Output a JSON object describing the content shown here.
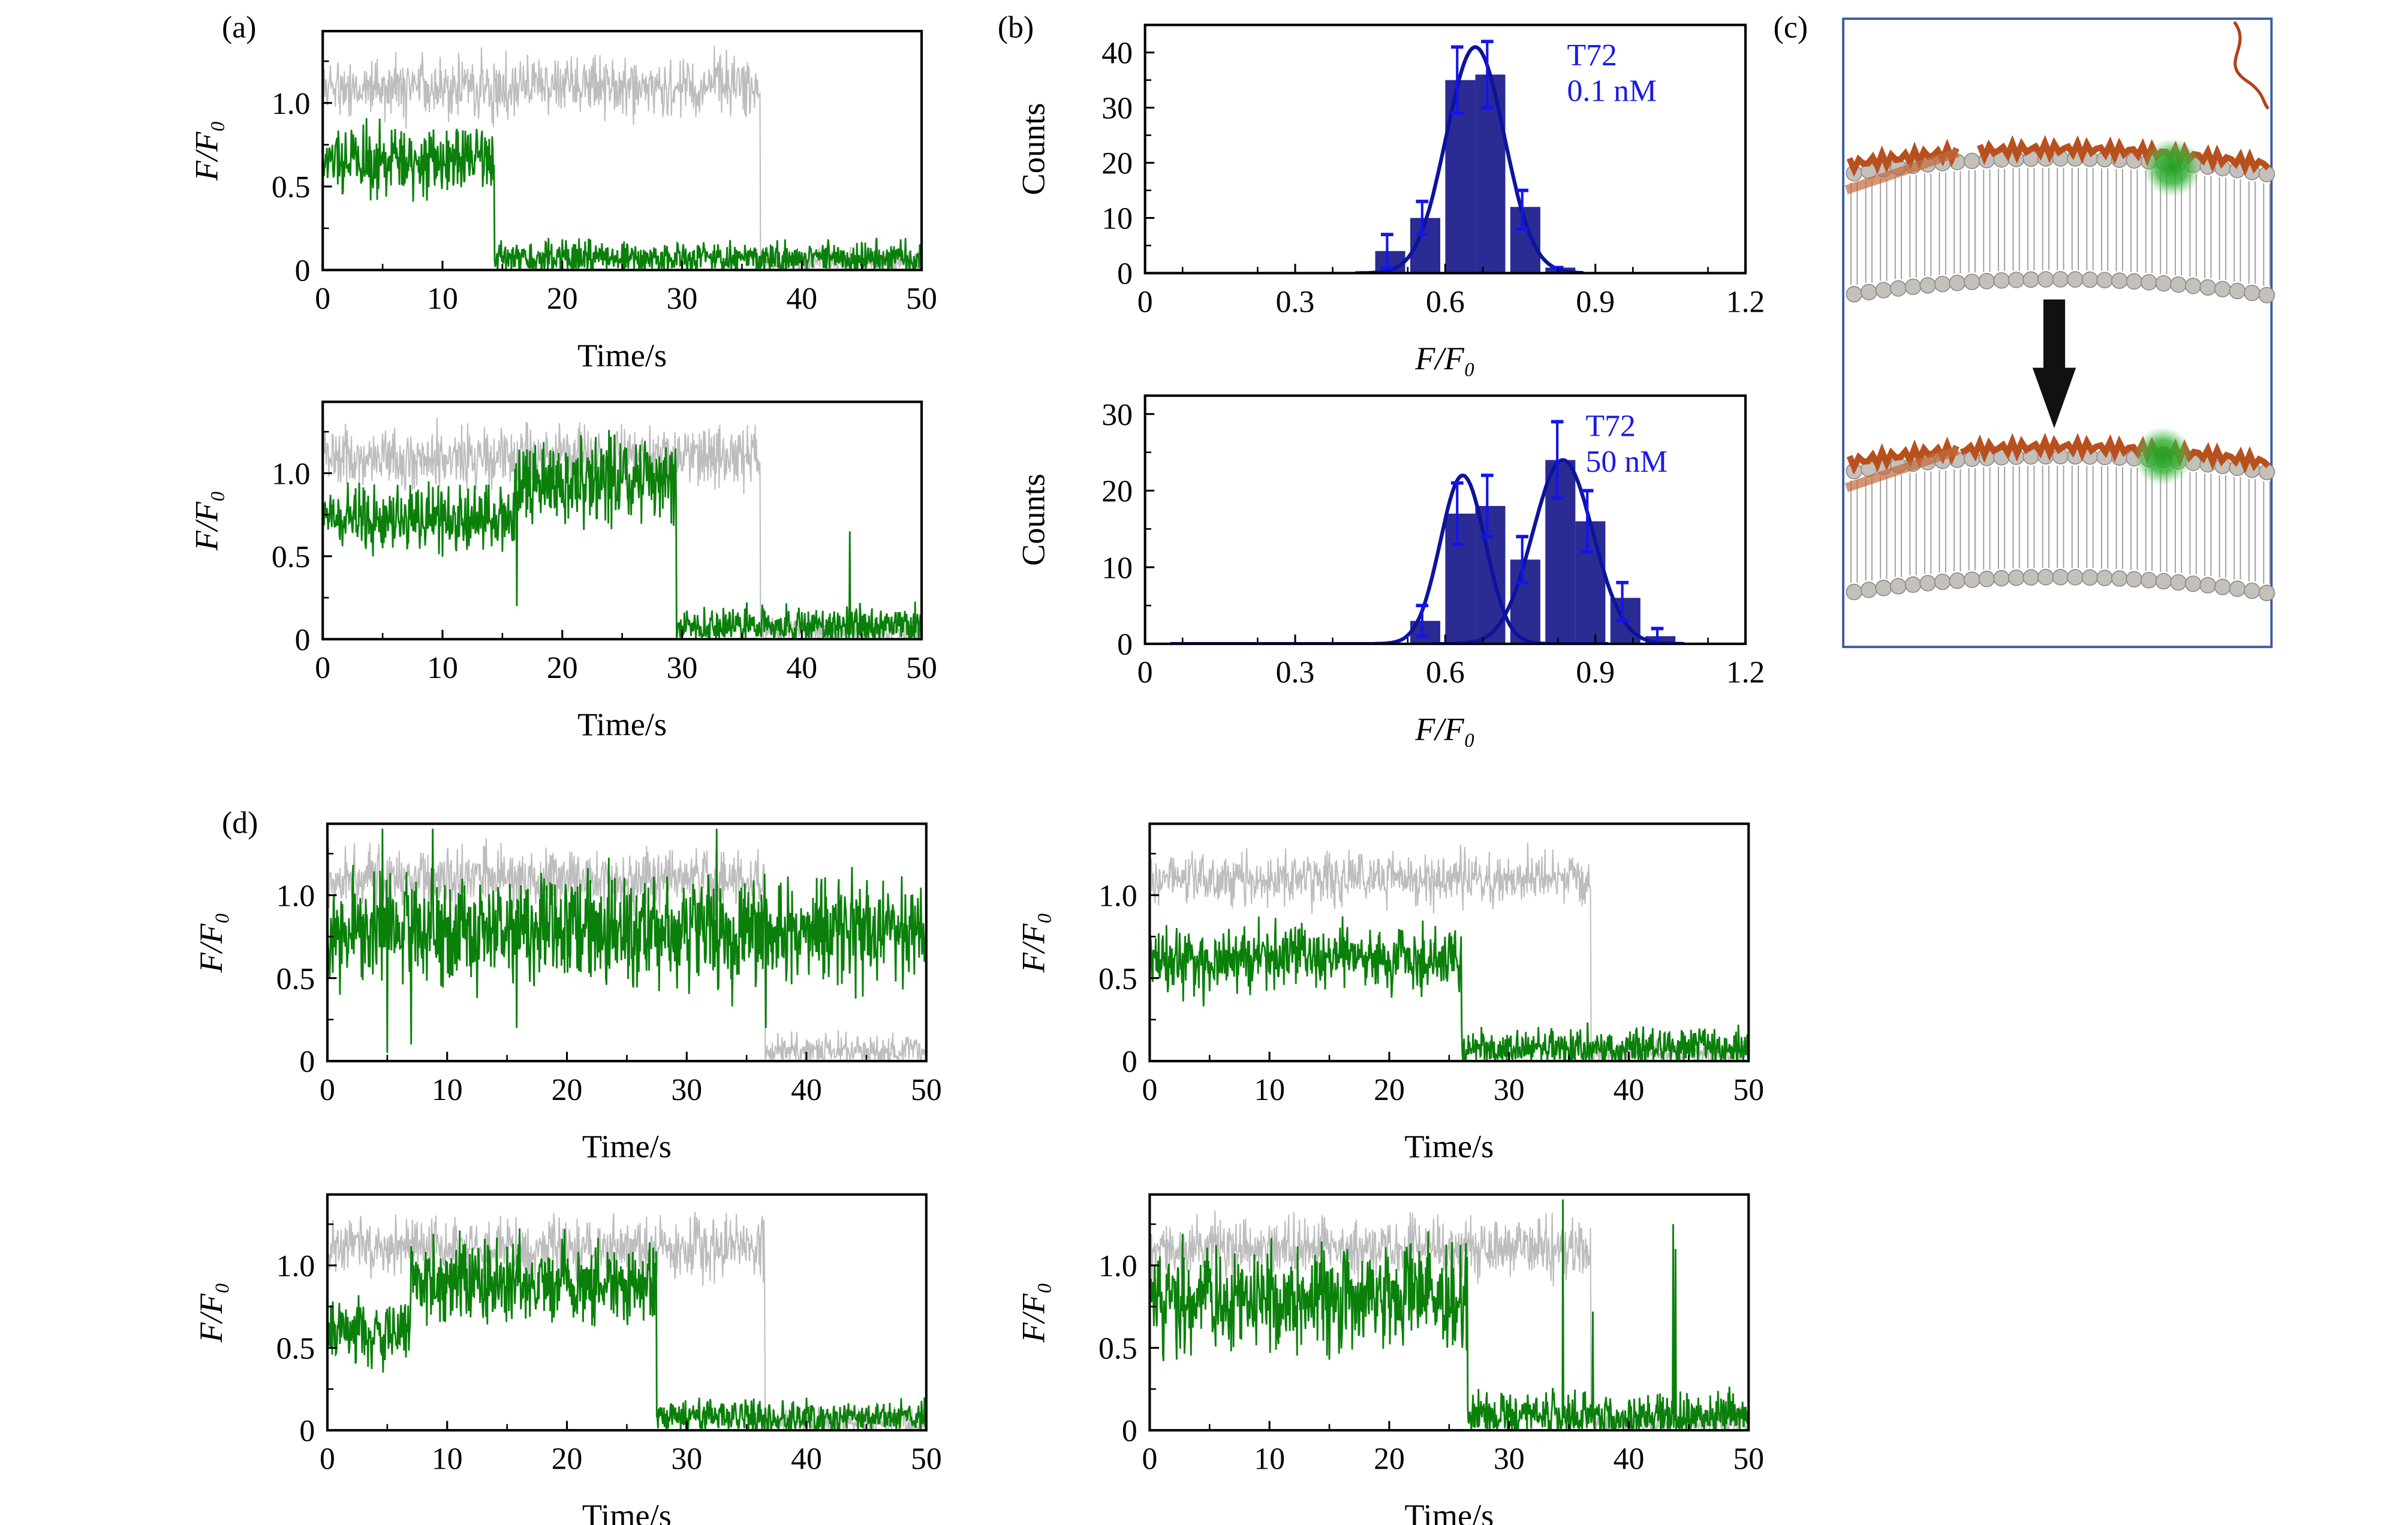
{
  "panels": {
    "a": "(a)",
    "b": "(b)",
    "c": "(c)",
    "d": "(d)"
  },
  "colors": {
    "green": "#0a800a",
    "gray": "#bdbdbd",
    "bar": "#2b2b94",
    "fit": "#0c149e",
    "error": "#1414f0",
    "annotation": "#1a1ae6"
  },
  "chart_data": [
    {
      "id": "a1",
      "type": "line",
      "xlabel": "Time/s",
      "ylabel": "F/F₀",
      "xlim": [
        0,
        50
      ],
      "ylim": [
        0,
        1.43
      ],
      "xticks": [
        0,
        10,
        20,
        30,
        40,
        50
      ],
      "yticks": [
        0,
        0.5,
        1.0
      ],
      "ytick_labels": [
        "0",
        "0.5",
        "1.0"
      ],
      "series": [
        {
          "color": "#bdbdbd",
          "segments": [
            {
              "from": 0,
              "to": 36.5,
              "mean": 1.1,
              "sd": 0.09
            },
            {
              "from": 36.5,
              "to": 50,
              "mean": 0.05,
              "sd": 0.04
            }
          ]
        },
        {
          "color": "#0a800a",
          "segments": [
            {
              "from": 0,
              "to": 14.3,
              "mean": 0.65,
              "sd": 0.1
            },
            {
              "from": 14.3,
              "to": 50,
              "mean": 0.07,
              "sd": 0.05
            }
          ]
        }
      ]
    },
    {
      "id": "a2",
      "type": "line",
      "xlabel": "Time/s",
      "ylabel": "F/F₀",
      "xlim": [
        0,
        50
      ],
      "ylim": [
        0,
        1.43
      ],
      "xticks": [
        0,
        10,
        20,
        30,
        40,
        50
      ],
      "yticks": [
        0,
        0.5,
        1.0
      ],
      "ytick_labels": [
        "0",
        "0.5",
        "1.0"
      ],
      "series": [
        {
          "color": "#bdbdbd",
          "segments": [
            {
              "from": 0,
              "to": 36.5,
              "mean": 1.1,
              "sd": 0.09
            },
            {
              "from": 36.5,
              "to": 50,
              "mean": 0.05,
              "sd": 0.04
            }
          ]
        },
        {
          "color": "#0a800a",
          "segments": [
            {
              "from": 0,
              "to": 16,
              "mean": 0.72,
              "sd": 0.1
            },
            {
              "from": 16,
              "to": 29.5,
              "mean": 0.95,
              "sd": 0.13
            },
            {
              "from": 29.5,
              "to": 50,
              "mean": 0.08,
              "sd": 0.06
            }
          ],
          "spikes": [
            {
              "t": 16.2,
              "value": 0.2
            },
            {
              "t": 44,
              "value": 0.65
            }
          ]
        }
      ]
    },
    {
      "id": "d1",
      "type": "line",
      "xlabel": "Time/s",
      "ylabel": "F/F₀",
      "xlim": [
        0,
        50
      ],
      "ylim": [
        0,
        1.43
      ],
      "xticks": [
        0,
        10,
        20,
        30,
        40,
        50
      ],
      "yticks": [
        0,
        0.5,
        1.0
      ],
      "ytick_labels": [
        "0",
        "0.5",
        "1.0"
      ],
      "series": [
        {
          "color": "#bdbdbd",
          "segments": [
            {
              "from": 0,
              "to": 36.5,
              "mean": 1.1,
              "sd": 0.09
            },
            {
              "from": 36.5,
              "to": 50,
              "mean": 0.06,
              "sd": 0.05
            }
          ]
        },
        {
          "color": "#0a800a",
          "segments": [
            {
              "from": 0,
              "to": 50,
              "mean": 0.78,
              "sd": 0.16
            }
          ],
          "spikes": [
            {
              "t": 5,
              "value": 0.05
            },
            {
              "t": 7,
              "value": 0.1
            },
            {
              "t": 4.6,
              "value": 1.4
            },
            {
              "t": 8.8,
              "value": 1.4
            },
            {
              "t": 15.8,
              "value": 0.2
            },
            {
              "t": 32.5,
              "value": 1.4
            },
            {
              "t": 36.6,
              "value": 0.2
            }
          ]
        }
      ]
    },
    {
      "id": "d2",
      "type": "line",
      "xlabel": "Time/s",
      "ylabel": "F/F₀",
      "xlim": [
        0,
        50
      ],
      "ylim": [
        0,
        1.43
      ],
      "xticks": [
        0,
        10,
        20,
        30,
        40,
        50
      ],
      "yticks": [
        0,
        0.5,
        1.0
      ],
      "ytick_labels": [
        "0",
        "0.5",
        "1.0"
      ],
      "series": [
        {
          "color": "#bdbdbd",
          "segments": [
            {
              "from": 0,
              "to": 36.8,
              "mean": 1.1,
              "sd": 0.08
            },
            {
              "from": 36.8,
              "to": 50,
              "mean": 0.05,
              "sd": 0.04
            }
          ]
        },
        {
          "color": "#0a800a",
          "segments": [
            {
              "from": 0,
              "to": 26,
              "mean": 0.62,
              "sd": 0.1
            },
            {
              "from": 26,
              "to": 50,
              "mean": 0.08,
              "sd": 0.06
            }
          ]
        }
      ]
    },
    {
      "id": "d3",
      "type": "line",
      "xlabel": "Time/s",
      "ylabel": "F/F₀",
      "xlim": [
        0,
        50
      ],
      "ylim": [
        0,
        1.43
      ],
      "xticks": [
        0,
        10,
        20,
        30,
        40,
        50
      ],
      "yticks": [
        0,
        0.5,
        1.0
      ],
      "ytick_labels": [
        "0",
        "0.5",
        "1.0"
      ],
      "series": [
        {
          "color": "#bdbdbd",
          "segments": [
            {
              "from": 0,
              "to": 36.5,
              "mean": 1.1,
              "sd": 0.09
            },
            {
              "from": 36.5,
              "to": 50,
              "mean": 0.05,
              "sd": 0.04
            }
          ]
        },
        {
          "color": "#0a800a",
          "segments": [
            {
              "from": 0,
              "to": 7,
              "mean": 0.6,
              "sd": 0.1
            },
            {
              "from": 7,
              "to": 27.5,
              "mean": 0.9,
              "sd": 0.12
            },
            {
              "from": 27.5,
              "to": 50,
              "mean": 0.08,
              "sd": 0.05
            }
          ]
        }
      ]
    },
    {
      "id": "d4",
      "type": "line",
      "xlabel": "Time/s",
      "ylabel": "F/F₀",
      "xlim": [
        0,
        50
      ],
      "ylim": [
        0,
        1.43
      ],
      "xticks": [
        0,
        10,
        20,
        30,
        40,
        50
      ],
      "yticks": [
        0,
        0.5,
        1.0
      ],
      "ytick_labels": [
        "0",
        "0.5",
        "1.0"
      ],
      "series": [
        {
          "color": "#bdbdbd",
          "segments": [
            {
              "from": 0,
              "to": 36.8,
              "mean": 1.1,
              "sd": 0.09
            },
            {
              "from": 36.8,
              "to": 50,
              "mean": 0.05,
              "sd": 0.04
            }
          ]
        },
        {
          "color": "#0a800a",
          "segments": [
            {
              "from": 0,
              "to": 26.5,
              "mean": 0.8,
              "sd": 0.15
            },
            {
              "from": 26.5,
              "to": 50,
              "mean": 0.09,
              "sd": 0.07
            }
          ],
          "spikes": [
            {
              "t": 34.5,
              "value": 1.4
            },
            {
              "t": 37,
              "value": 0.72
            },
            {
              "t": 43.7,
              "value": 1.25
            },
            {
              "t": 43.9,
              "value": 1.1
            }
          ]
        }
      ]
    },
    {
      "id": "b1",
      "type": "bar",
      "xlabel": "F/F₀",
      "ylabel": "Counts",
      "xlim": [
        0,
        1.2
      ],
      "ylim": [
        0,
        45
      ],
      "xticks": [
        0,
        0.3,
        0.6,
        0.9,
        1.2
      ],
      "xtick_labels": [
        "0",
        "0.3",
        "0.6",
        "0.9",
        "1.2"
      ],
      "yticks": [
        0,
        10,
        20,
        30,
        40
      ],
      "ytick_labels": [
        "0",
        "10",
        "20",
        "30",
        "40"
      ],
      "annotation": [
        "T72",
        "0.1 nM"
      ],
      "bin_width": 0.06,
      "bins": [
        0.49,
        0.56,
        0.63,
        0.69,
        0.76,
        0.83
      ],
      "values": [
        4,
        10,
        35,
        36,
        12,
        1
      ],
      "errors": [
        [
          1,
          7
        ],
        [
          7,
          13
        ],
        [
          29,
          41
        ],
        [
          30,
          42
        ],
        [
          8,
          15
        ],
        [
          0,
          1
        ]
      ],
      "fits": [
        {
          "center": 0.66,
          "amplitude": 41,
          "sigma": 0.058,
          "range": [
            0.42,
            0.88
          ]
        }
      ]
    },
    {
      "id": "b2",
      "type": "bar",
      "xlabel": "F/F₀",
      "ylabel": "Counts",
      "xlim": [
        0,
        1.2
      ],
      "ylim": [
        0,
        32.4
      ],
      "xticks": [
        0,
        0.3,
        0.6,
        0.9,
        1.2
      ],
      "xtick_labels": [
        "0",
        "0.3",
        "0.6",
        "0.9",
        "1.2"
      ],
      "yticks": [
        0,
        10,
        20,
        30
      ],
      "ytick_labels": [
        "0",
        "10",
        "20",
        "30"
      ],
      "annotation": [
        "T72",
        "50 nM"
      ],
      "bin_width": 0.06,
      "bins": [
        0.56,
        0.63,
        0.69,
        0.76,
        0.83,
        0.89,
        0.96,
        1.03
      ],
      "values": [
        3,
        17,
        18,
        11,
        24,
        16,
        6,
        1
      ],
      "errors": [
        [
          1,
          5
        ],
        [
          13,
          21
        ],
        [
          14,
          22
        ],
        [
          8,
          14
        ],
        [
          19,
          29
        ],
        [
          12,
          20
        ],
        [
          3,
          8
        ],
        [
          0,
          2
        ]
      ],
      "fits": [
        {
          "center": 0.635,
          "amplitude": 22,
          "sigma": 0.045,
          "range": [
            0.05,
            0.93
          ]
        },
        {
          "center": 0.835,
          "amplitude": 24,
          "sigma": 0.06,
          "range": [
            0.57,
            1.08
          ]
        }
      ]
    }
  ]
}
